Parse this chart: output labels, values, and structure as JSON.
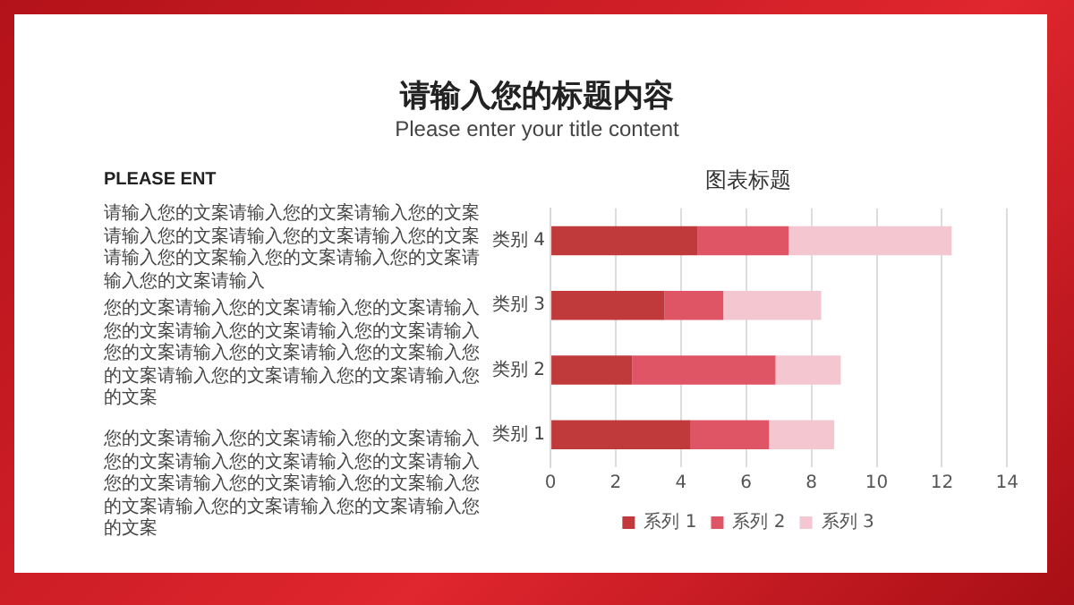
{
  "chart_data": {
    "type": "bar",
    "orientation": "horizontal",
    "stacked": true,
    "title": "图表标题",
    "categories": [
      "类别 4",
      "类别 3",
      "类别 2",
      "类别 1"
    ],
    "series": [
      {
        "name": "系列 1",
        "color": "#c0393b",
        "values": [
          4.5,
          3.5,
          2.5,
          4.3
        ]
      },
      {
        "name": "系列 2",
        "color": "#e05566",
        "values": [
          2.8,
          1.8,
          4.4,
          2.4
        ]
      },
      {
        "name": "系列 3",
        "color": "#f4c6cf",
        "values": [
          5.0,
          3.0,
          2.0,
          2.0
        ]
      }
    ],
    "xlim": [
      0,
      14
    ],
    "xticks": [
      0,
      2,
      4,
      6,
      8,
      10,
      12,
      14
    ],
    "grid": "x",
    "legend": "bottom",
    "annotations": [
      "请输入您的标题内容",
      "Please enter your title content",
      "PLEASE ENT",
      "请输入您的文案请输入您的文案请输入您的文案请输入您的文案请输入您的文案请输入您的文案请输入您的文案输入您的文案请输入您的文案请输入您的文案请输入",
      "您的文案请输入您的文案请输入您的文案请输入您的文案请输入您的文案请输入您的文案请输入您的文案请输入您的文案请输入您的文案输入您的文案请输入您的文案请输入您的文案请输入您的文案",
      "您的文案请输入您的文案请输入您的文案请输入您的文案请输入您的文案请输入您的文案请输入您的文案请输入您的文案请输入您的文案输入您的文案请输入您的文案请输入您的文案请输入您的文案"
    ]
  }
}
